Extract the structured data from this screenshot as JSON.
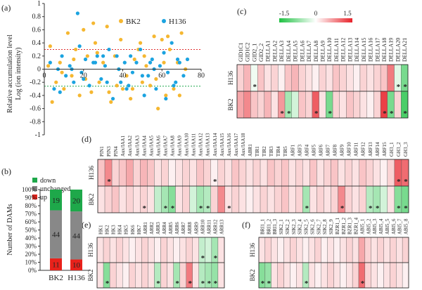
{
  "panel_letters": {
    "a": "(a)",
    "b": "(b)",
    "c": "(c)",
    "d": "(d)",
    "e": "(e)",
    "f": "(f)"
  },
  "colors": {
    "bk2": "#f5b731",
    "h136": "#1ba3e0",
    "down": "#1ea84a",
    "unchanged": "#888888",
    "up": "#e8221b",
    "pos_line": "#e03030",
    "neg_line": "#1ea84a"
  },
  "chart_data": [
    {
      "panel": "a",
      "type": "scatter",
      "xlabel": "",
      "ylabel": "Relative accumulation level Log (ion intensity)",
      "ylabel_lines": [
        "Relative accumulation level",
        "Log (ion intensity)"
      ],
      "xlim": [
        0,
        80
      ],
      "ylim": [
        -1,
        1
      ],
      "xticks": [
        0,
        20,
        40,
        60,
        80
      ],
      "xtick_labels": [
        "0",
        "20",
        "40",
        "60",
        "80"
      ],
      "yticks": [
        1,
        0.8,
        0.6,
        0.4,
        0.2,
        0,
        -0.2,
        -0.4,
        -0.6,
        -0.8,
        -1
      ],
      "ytick_labels": [
        "1",
        "0.8",
        "0.6",
        "0.4",
        "0.2",
        "0",
        "-0.2",
        "-0.4",
        "-0.6",
        "-0.8",
        "-1"
      ],
      "threshold_lines": [
        0.3,
        -0.26
      ],
      "series": [
        {
          "name": "BK2",
          "x": [
            2,
            4,
            6,
            8,
            10,
            12,
            14,
            16,
            18,
            20,
            22,
            24,
            26,
            28,
            30,
            32,
            34,
            36,
            38,
            40,
            42,
            44,
            46,
            48,
            50,
            52,
            54,
            56,
            58,
            60,
            62,
            64,
            66,
            68,
            70,
            72,
            3,
            9,
            15,
            21,
            27,
            33,
            39,
            45,
            51,
            57,
            63,
            69,
            25,
            37,
            49,
            61
          ],
          "y": [
            0.05,
            -0.5,
            -0.2,
            0.1,
            -0.3,
            0.55,
            -0.1,
            0.3,
            -0.4,
            0.6,
            0.2,
            -0.35,
            0.4,
            -0.2,
            0.1,
            0.65,
            -0.5,
            0.2,
            0.0,
            -0.3,
            -0.1,
            -0.45,
            0.15,
            0.3,
            -0.2,
            0.05,
            -0.25,
            0.5,
            -0.6,
            0.45,
            -0.4,
            0.3,
            -0.3,
            0.1,
            0.55,
            0.0,
            0.35,
            -0.05,
            0.15,
            -0.15,
            0.25,
            -0.35,
            0.45,
            -0.3,
            0.2,
            -0.15,
            0.5,
            -0.4,
            0.7,
            -0.25,
            0.4,
            0.1
          ]
        },
        {
          "name": "H136",
          "x": [
            3,
            5,
            7,
            9,
            11,
            13,
            15,
            17,
            19,
            21,
            23,
            25,
            27,
            29,
            31,
            33,
            35,
            37,
            39,
            41,
            43,
            45,
            47,
            49,
            51,
            53,
            55,
            57,
            59,
            61,
            63,
            65,
            67,
            69,
            71,
            73,
            8,
            14,
            20,
            26,
            32,
            38,
            44,
            50,
            56,
            62,
            68,
            18,
            30,
            42,
            54,
            66
          ],
          "y": [
            0.1,
            -0.3,
            0.0,
            0.2,
            -0.1,
            0.05,
            -0.2,
            0.85,
            -0.05,
            0.15,
            -0.25,
            0.1,
            0.2,
            -0.15,
            0.05,
            0.3,
            -0.45,
            0.2,
            -0.2,
            0.1,
            -0.25,
            -0.05,
            0.1,
            0.3,
            -0.4,
            -0.1,
            0.15,
            -0.3,
            0.05,
            0.25,
            -0.05,
            0.4,
            -0.2,
            0.1,
            -0.1,
            0.15,
            -0.35,
            0.0,
            -0.15,
            0.1,
            -0.2,
            0.0,
            0.2,
            -0.1,
            0.0,
            -0.45,
            0.15,
            0.35,
            0.2,
            -0.3,
            0.1,
            -0.25
          ]
        }
      ],
      "legend": [
        "BK2",
        "H136"
      ]
    },
    {
      "panel": "b",
      "type": "bar",
      "stacked": true,
      "ylabel": "Number of DAMs",
      "categories": [
        "BK2",
        "H136"
      ],
      "yticks": [
        0,
        10,
        20,
        30,
        40,
        50,
        60,
        70,
        80,
        90,
        100
      ],
      "ytick_labels": [
        "0%",
        "10%",
        "20%",
        "30%",
        "40%",
        "50%",
        "60%",
        "70%",
        "80%",
        "90%",
        "100%"
      ],
      "series": [
        {
          "name": "up",
          "values": [
            11,
            10
          ]
        },
        {
          "name": "unchanged",
          "values": [
            44,
            44
          ]
        },
        {
          "name": "down",
          "values": [
            19,
            20
          ]
        }
      ],
      "legend": [
        "down",
        "unchanged",
        "up"
      ]
    },
    {
      "panel": "c",
      "type": "heatmap",
      "colorbar": {
        "min": -1.5,
        "max": 1.5,
        "labels": [
          "-1.5",
          "0",
          "1.5"
        ]
      },
      "rows": [
        "H136",
        "BK2"
      ],
      "columns": [
        "GID1C1",
        "GID1C2",
        "GID2_1",
        "GID2_2",
        "DELLA1",
        "DELLA2",
        "DELLA3",
        "DELLA4",
        "DELLA5",
        "DELLA6",
        "DELLA7",
        "DELLA8",
        "DELLA9",
        "DELLA10",
        "DELLA11",
        "DELLA12",
        "DELLA13",
        "DELLA14",
        "DELLA15",
        "DELLA16",
        "DELLA17",
        "DELLA18",
        "DELLA19",
        "DELLA20",
        "DELLA21"
      ],
      "values": [
        [
          0.3,
          0.5,
          -0.1,
          0.4,
          0.2,
          0.3,
          0.1,
          0.4,
          0.5,
          0.3,
          0.2,
          0.1,
          0.3,
          0.2,
          0.4,
          0.3,
          0.2,
          0.1,
          0.3,
          0.2,
          0.3,
          0.4,
          0.9,
          -0.2,
          -0.9
        ],
        [
          0.6,
          0.8,
          0.4,
          0.3,
          0.5,
          0.2,
          0.7,
          -0.6,
          -0.3,
          0.4,
          0.3,
          1.1,
          0.2,
          -0.9,
          0.3,
          0.2,
          0.4,
          0.3,
          0.2,
          0.1,
          0.3,
          1.3,
          -0.9,
          0.3,
          -1.2
        ]
      ],
      "stars": [
        [
          "H136",
          "GID2_1"
        ],
        [
          "H136",
          "DELLA20"
        ],
        [
          "H136",
          "DELLA21"
        ],
        [
          "BK2",
          "DELLA3"
        ],
        [
          "BK2",
          "DELLA4"
        ],
        [
          "BK2",
          "DELLA8"
        ],
        [
          "BK2",
          "DELLA10"
        ],
        [
          "BK2",
          "DELLA18"
        ],
        [
          "BK2",
          "DELLA19"
        ],
        [
          "BK2",
          "DELLA21"
        ]
      ]
    },
    {
      "panel": "d",
      "type": "heatmap",
      "rows": [
        "H136",
        "BK2"
      ],
      "columns": [
        "PIN1",
        "PIN3",
        "PIN4",
        "Aux/IAA1",
        "Aux/IAA2",
        "Aux/IAA3",
        "Aux/IAA4",
        "Aux/IAA5",
        "Aux/IAA6",
        "Aux/IAA7",
        "Aux/IAA8",
        "Aux/IAA9",
        "Aux/IAA10",
        "Aux/IAA11",
        "Aux/IAA12",
        "Aux/IAA13",
        "Aux/IAA14",
        "Aux/IAA15",
        "Aux/IAA16",
        "Aux/IAA17",
        "Aux/IAA18",
        "ABR1",
        "TIR1",
        "TIR2",
        "TIR3",
        "TIR4",
        "TIR5",
        "ARF1",
        "ARF3",
        "ARF4",
        "ARF5",
        "ARF6",
        "ARF7",
        "ARF8",
        "ARF9",
        "ARF10",
        "ARF11",
        "ARF12",
        "ARF13",
        "ARF14",
        "ARF15",
        "GH3_1",
        "GH3_2",
        "GH3_3"
      ],
      "values": [
        [
          0.4,
          0.8,
          0.3,
          0.4,
          0.6,
          0.3,
          0.5,
          0.4,
          0.2,
          0.3,
          0.1,
          0.2,
          0.3,
          0.2,
          0.4,
          0.3,
          0.1,
          0.3,
          0.2,
          0.4,
          0.3,
          0.2,
          0.3,
          0.2,
          0.4,
          0.3,
          0.4,
          0.2,
          0.3,
          0.2,
          0.4,
          0.2,
          0.3,
          0.4,
          0.2,
          0.3,
          0.2,
          0.4,
          0.3,
          0.2,
          0.1,
          0.3,
          1.1,
          1.0
        ],
        [
          0.2,
          0.3,
          0.4,
          0.2,
          0.3,
          0.2,
          0.3,
          0.2,
          -0.4,
          -0.6,
          -0.8,
          0.2,
          0.3,
          -0.3,
          -0.6,
          -0.5,
          0.3,
          0.8,
          0.2,
          0.3,
          0.2,
          0.1,
          0.2,
          0.3,
          0.2,
          0.3,
          0.4,
          0.2,
          0.3,
          -0.6,
          0.2,
          0.3,
          0.2,
          0.3,
          0.8,
          0.3,
          0.2,
          0.3,
          -0.5,
          -0.6,
          -0.3,
          0.2,
          -0.8,
          -0.9
        ]
      ],
      "stars": [
        [
          "H136",
          "PIN3"
        ],
        [
          "H136",
          "Aux/IAA14"
        ],
        [
          "H136",
          "GH3_2"
        ],
        [
          "H136",
          "GH3_3"
        ],
        [
          "BK2",
          "Aux/IAA4"
        ],
        [
          "BK2",
          "Aux/IAA7"
        ],
        [
          "BK2",
          "Aux/IAA8"
        ],
        [
          "BK2",
          "Aux/IAA12"
        ],
        [
          "BK2",
          "Aux/IAA13"
        ],
        [
          "BK2",
          "Aux/IAA16"
        ],
        [
          "BK2",
          "ARF4"
        ],
        [
          "BK2",
          "ARF9"
        ],
        [
          "BK2",
          "ARF13"
        ],
        [
          "BK2",
          "ARF14"
        ],
        [
          "BK2",
          "GH3_2"
        ],
        [
          "BK2",
          "GH3_3"
        ]
      ]
    },
    {
      "panel": "e",
      "type": "heatmap",
      "rows": [
        "H136",
        "BK2"
      ],
      "columns": [
        "HK1",
        "HK2",
        "HK3",
        "HK4",
        "HK5",
        "HK6",
        "HK7",
        "ARR1",
        "ARR2",
        "ARR3",
        "ARR4",
        "ARR5",
        "ARR6",
        "ARR7",
        "ARR8",
        "ARR9",
        "ARR10",
        "ARR11",
        "ARR12",
        "ARR13"
      ],
      "values": [
        [
          0.2,
          0.3,
          0.2,
          0.3,
          0.2,
          0.1,
          0.2,
          0.3,
          0.2,
          0.1,
          0.3,
          0.2,
          0.1,
          0.2,
          0.3,
          0.2,
          -0.4,
          -0.3,
          -0.6,
          0.2
        ],
        [
          0.2,
          -0.8,
          0.3,
          0.2,
          0.1,
          0.3,
          0.2,
          0.3,
          0.2,
          -0.5,
          0.3,
          0.2,
          -0.6,
          0.3,
          0.9,
          0.2,
          -0.5,
          -0.6,
          -0.7,
          0.2
        ]
      ],
      "stars": [
        [
          "H136",
          "ARR10"
        ],
        [
          "H136",
          "ARR12"
        ],
        [
          "BK2",
          "HK2"
        ],
        [
          "BK2",
          "ARR3"
        ],
        [
          "BK2",
          "ARR6"
        ],
        [
          "BK2",
          "ARR8"
        ],
        [
          "BK2",
          "ARR10"
        ],
        [
          "BK2",
          "ARR11"
        ],
        [
          "BK2",
          "ARR12"
        ]
      ]
    },
    {
      "panel": "f",
      "type": "heatmap",
      "rows": [
        "H136",
        "BK2"
      ],
      "columns": [
        "BRI1_1",
        "BRI1_2",
        "BRI1_3",
        "SIK2_1",
        "SIK2_2",
        "SIK2_3",
        "SIK2_4",
        "SIK2_5",
        "SIK2_6",
        "SIK2_7",
        "SIK2_8",
        "SIK2_9",
        "BZR1_1",
        "BZR1_2",
        "BZR1_3",
        "BZR1_4",
        "ABI5_1",
        "ABI5_2",
        "ABI5_3",
        "ABI5_4",
        "ABI5_5",
        "ABI5_6",
        "ABI5_7",
        "ABI5_8"
      ],
      "values": [
        [
          0.2,
          0.3,
          0.2,
          0.1,
          0.2,
          0.3,
          0.2,
          0.1,
          0.2,
          0.3,
          0.1,
          0.2,
          0.1,
          0.2,
          0.3,
          0.2,
          0.6,
          0.3,
          0.2,
          0.3,
          0.2,
          0.3,
          0.2,
          0.3
        ],
        [
          -0.8,
          -0.7,
          0.2,
          0.3,
          0.2,
          0.1,
          0.2,
          -0.5,
          0.2,
          0.1,
          0.2,
          0.3,
          0.2,
          0.1,
          0.2,
          0.3,
          1.0,
          0.3,
          0.2,
          0.1,
          0.2,
          0.3,
          0.2,
          0.1
        ]
      ],
      "stars": [
        [
          "BK2",
          "BRI1_1"
        ],
        [
          "BK2",
          "BRI1_2"
        ],
        [
          "BK2",
          "SIK2_5"
        ],
        [
          "BK2",
          "ABI5_1"
        ]
      ]
    }
  ]
}
